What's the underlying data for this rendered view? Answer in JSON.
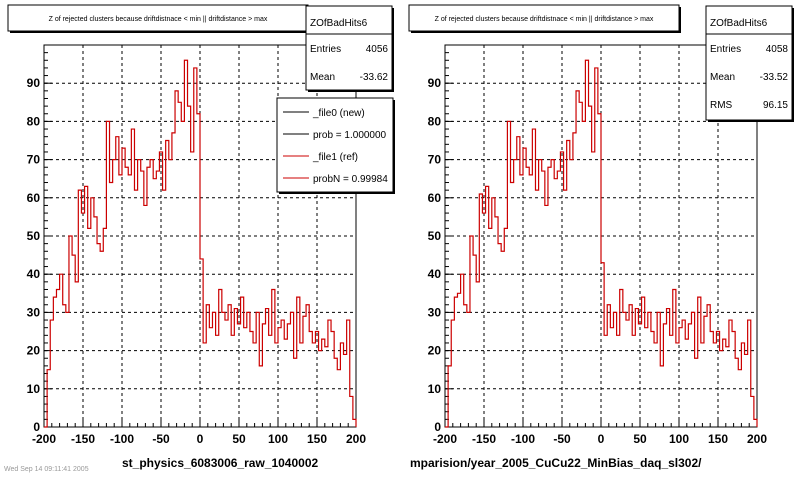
{
  "chart_data": [
    {
      "type": "bar",
      "title": "Z of rejected clusters because driftdistnace < min || driftdistance > max",
      "stats": {
        "name": "ZOfBadHits6",
        "rows": [
          [
            "Entries",
            "4056"
          ],
          [
            "Mean",
            "-33.62"
          ]
        ]
      },
      "legend": [
        {
          "label": "_file0 (new)",
          "color": "#000000"
        },
        {
          "label": "prob = 1.000000",
          "color": "#000000"
        },
        {
          "label": "_file1 (ref)",
          "color": "#cc0000"
        },
        {
          "label": "probN = 0.99984",
          "color": "#cc0000"
        }
      ],
      "xlim": [
        -200,
        200
      ],
      "ylim": [
        0,
        100
      ],
      "xticks": [
        -200,
        -150,
        -100,
        -50,
        0,
        50,
        100,
        150,
        200
      ],
      "yticks": [
        0,
        10,
        20,
        30,
        40,
        50,
        60,
        70,
        80,
        90
      ],
      "grid": true,
      "bin_width": 4,
      "x": [
        -198,
        -194,
        -190,
        -186,
        -182,
        -178,
        -174,
        -170,
        -166,
        -162,
        -158,
        -154,
        -150,
        -146,
        -142,
        -138,
        -134,
        -130,
        -126,
        -122,
        -118,
        -114,
        -110,
        -106,
        -102,
        -98,
        -94,
        -90,
        -86,
        -82,
        -78,
        -74,
        -70,
        -66,
        -62,
        -58,
        -54,
        -50,
        -46,
        -42,
        -38,
        -34,
        -30,
        -26,
        -22,
        -18,
        -14,
        -10,
        -6,
        -2,
        2,
        6,
        10,
        14,
        18,
        22,
        26,
        30,
        34,
        38,
        42,
        46,
        50,
        54,
        58,
        62,
        66,
        70,
        74,
        78,
        82,
        86,
        90,
        94,
        98,
        102,
        106,
        110,
        114,
        118,
        122,
        126,
        130,
        134,
        138,
        142,
        146,
        150,
        154,
        158,
        162,
        166,
        170,
        174,
        178,
        182,
        186,
        190,
        194,
        198
      ],
      "series": [
        {
          "color": "#cc0000",
          "values": [
            0,
            15,
            28,
            34,
            36,
            40,
            32,
            30,
            50,
            45,
            38,
            62,
            56,
            63,
            52,
            60,
            55,
            48,
            46,
            52,
            80,
            64,
            70,
            76,
            66,
            73,
            68,
            66,
            78,
            62,
            70,
            67,
            58,
            68,
            70,
            65,
            67,
            72,
            62,
            75,
            70,
            77,
            88,
            85,
            80,
            96,
            84,
            72,
            94,
            82,
            44,
            22,
            32,
            26,
            30,
            24,
            36,
            30,
            28,
            32,
            24,
            31,
            27,
            34,
            26,
            30,
            25,
            22,
            30,
            16,
            27,
            31,
            24,
            36,
            22,
            26,
            28,
            23,
            27,
            30,
            18,
            34,
            22,
            29,
            32,
            25,
            22,
            25,
            20,
            23,
            21,
            28,
            25,
            18,
            15,
            22,
            19,
            28,
            8,
            2
          ]
        }
      ]
    },
    {
      "type": "bar",
      "title": "Z of rejected clusters because driftdistnace < min || driftdistance > max",
      "stats": {
        "name": "ZOfBadHits6",
        "rows": [
          [
            "Entries",
            "4058"
          ],
          [
            "Mean",
            "-33.52"
          ],
          [
            "RMS",
            "96.15"
          ]
        ]
      },
      "xlim": [
        -200,
        200
      ],
      "ylim": [
        0,
        100
      ],
      "xticks": [
        -200,
        -150,
        -100,
        -50,
        0,
        50,
        100,
        150,
        200
      ],
      "yticks": [
        0,
        10,
        20,
        30,
        40,
        50,
        60,
        70,
        80,
        90
      ],
      "grid": true,
      "bin_width": 4,
      "x": [
        -198,
        -194,
        -190,
        -186,
        -182,
        -178,
        -174,
        -170,
        -166,
        -162,
        -158,
        -154,
        -150,
        -146,
        -142,
        -138,
        -134,
        -130,
        -126,
        -122,
        -118,
        -114,
        -110,
        -106,
        -102,
        -98,
        -94,
        -90,
        -86,
        -82,
        -78,
        -74,
        -70,
        -66,
        -62,
        -58,
        -54,
        -50,
        -46,
        -42,
        -38,
        -34,
        -30,
        -26,
        -22,
        -18,
        -14,
        -10,
        -6,
        -2,
        2,
        6,
        10,
        14,
        18,
        22,
        26,
        30,
        34,
        38,
        42,
        46,
        50,
        54,
        58,
        62,
        66,
        70,
        74,
        78,
        82,
        86,
        90,
        94,
        98,
        102,
        106,
        110,
        114,
        118,
        122,
        126,
        130,
        134,
        138,
        142,
        146,
        150,
        154,
        158,
        162,
        166,
        170,
        174,
        178,
        182,
        186,
        190,
        194,
        198
      ],
      "series": [
        {
          "color": "#cc0000",
          "values": [
            0,
            16,
            28,
            34,
            35,
            40,
            32,
            30,
            50,
            45,
            38,
            61,
            56,
            63,
            52,
            60,
            55,
            48,
            46,
            52,
            80,
            64,
            70,
            76,
            66,
            73,
            68,
            66,
            78,
            62,
            70,
            67,
            58,
            68,
            70,
            65,
            67,
            72,
            62,
            75,
            70,
            77,
            88,
            85,
            80,
            96,
            84,
            72,
            94,
            82,
            43,
            24,
            32,
            26,
            30,
            24,
            36,
            30,
            28,
            32,
            24,
            31,
            27,
            34,
            26,
            30,
            25,
            22,
            30,
            16,
            27,
            31,
            24,
            36,
            22,
            26,
            28,
            23,
            27,
            30,
            18,
            34,
            22,
            29,
            32,
            25,
            22,
            25,
            20,
            23,
            21,
            28,
            25,
            18,
            15,
            22,
            19,
            28,
            8,
            2
          ]
        }
      ]
    }
  ],
  "labels": {
    "left": "st_physics_6083006_raw_1040002",
    "right": "mparision/year_2005_CuCu22_MinBias_daq_sl302/",
    "footer": "Wed Sep 14 09:11:41 2005"
  }
}
